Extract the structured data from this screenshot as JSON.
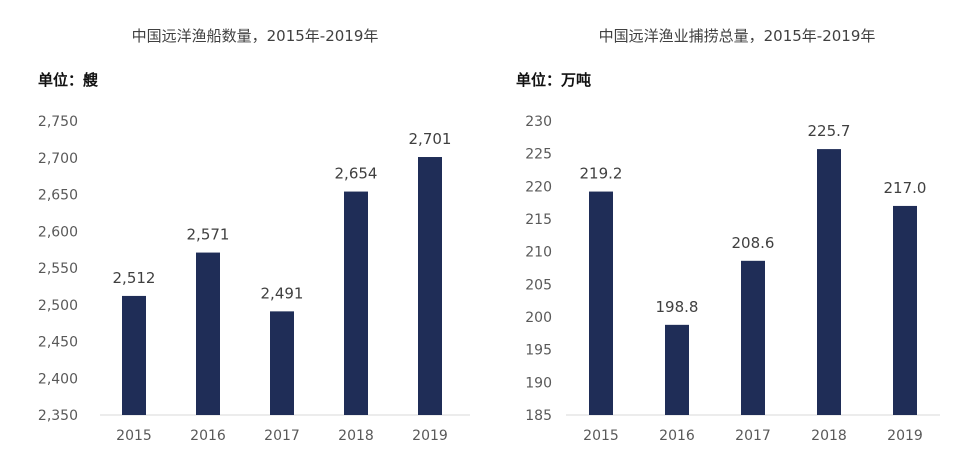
{
  "colors": {
    "bar": "#1f2d57",
    "axis": "#d9d9d9",
    "text": "#404040"
  },
  "chart_data": [
    {
      "type": "bar",
      "title": "中国远洋渔船数量，2015年-2019年",
      "unit_label": "单位：艘",
      "categories": [
        "2015",
        "2016",
        "2017",
        "2018",
        "2019"
      ],
      "values": [
        2512,
        2571,
        2491,
        2654,
        2701
      ],
      "data_labels": [
        "2,512",
        "2,571",
        "2,491",
        "2,654",
        "2,701"
      ],
      "y_ticks": [
        "2,350",
        "2,400",
        "2,450",
        "2,500",
        "2,550",
        "2,600",
        "2,650",
        "2,700",
        "2,750"
      ],
      "ylim": [
        2350,
        2750
      ],
      "grid": false
    },
    {
      "type": "bar",
      "title": "中国远洋渔业捕捞总量，2015年-2019年",
      "unit_label": "单位：万吨",
      "categories": [
        "2015",
        "2016",
        "2017",
        "2018",
        "2019"
      ],
      "values": [
        219.2,
        198.8,
        208.6,
        225.7,
        217.0
      ],
      "data_labels": [
        "219.2",
        "198.8",
        "208.6",
        "225.7",
        "217.0"
      ],
      "y_ticks": [
        "185",
        "190",
        "195",
        "200",
        "205",
        "210",
        "215",
        "220",
        "225",
        "230"
      ],
      "ylim": [
        185,
        230
      ],
      "grid": false
    }
  ]
}
